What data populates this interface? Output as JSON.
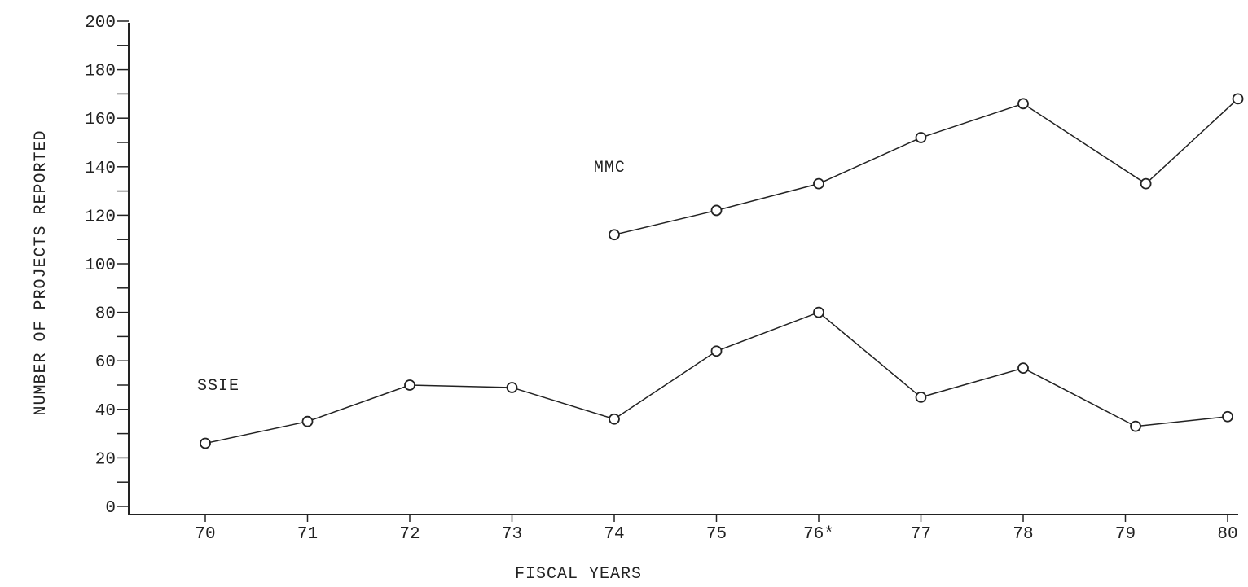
{
  "chart_data": {
    "type": "line",
    "xlabel": "FISCAL YEARS",
    "ylabel": "NUMBER OF PROJECTS REPORTED",
    "ylim": [
      0,
      200
    ],
    "y_major_ticks": [
      0,
      20,
      40,
      60,
      80,
      100,
      120,
      140,
      160,
      180,
      200
    ],
    "y_minor_step": 10,
    "x_ticks": [
      "70",
      "71",
      "72",
      "73",
      "74",
      "75",
      "76*",
      "77",
      "78",
      "79",
      "80"
    ],
    "grid": false,
    "series": [
      {
        "name": "MMC",
        "x": [
          74,
          75,
          76,
          77,
          78,
          79.2,
          80.1
        ],
        "y": [
          112,
          122,
          133,
          152,
          166,
          133,
          168
        ]
      },
      {
        "name": "SSIE",
        "x": [
          70,
          71,
          72,
          73,
          74,
          75,
          76,
          77,
          78,
          79.1,
          80
        ],
        "y": [
          26,
          35,
          50,
          49,
          36,
          64,
          80,
          45,
          57,
          33,
          37
        ]
      }
    ]
  }
}
